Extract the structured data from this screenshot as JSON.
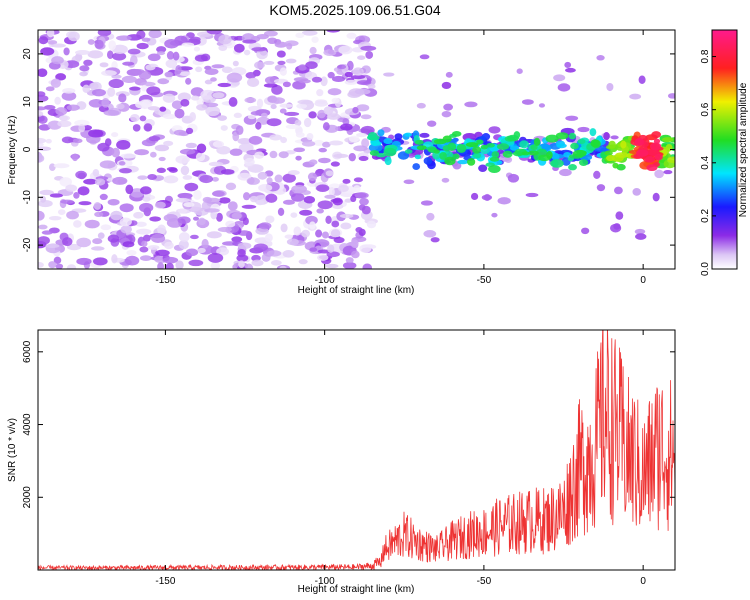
{
  "figure": {
    "title": "KOM5.2025.109.06.51.G04"
  },
  "colors": {
    "snr_line": "#ee3333",
    "axis": "#000000",
    "background": "#ffffff"
  },
  "chart_data": [
    {
      "type": "heatmap",
      "xlabel": "Height of straight line (km)",
      "ylabel": "Frequency (Hz)",
      "xlim": [
        -190,
        10
      ],
      "ylim": [
        -25,
        25
      ],
      "x_ticks": [
        -150,
        -100,
        -50,
        0
      ],
      "y_ticks": [
        -20,
        -10,
        0,
        10,
        20
      ],
      "colorbar": {
        "label": "Normalized spectral amplitude",
        "range": [
          0.0,
          0.9
        ],
        "ticks": [
          0.0,
          0.2,
          0.4,
          0.6,
          0.8
        ],
        "colormap": "white-violet-blue-cyan-green-yellow-red-magenta"
      },
      "grid": false,
      "regions": [
        {
          "x_range": [
            -190,
            -85
          ],
          "y_range": [
            -25,
            25
          ],
          "character": "broadband noise",
          "typical_amplitude": 0.05
        },
        {
          "x_range": [
            -85,
            10
          ],
          "y_range": [
            -3,
            3
          ],
          "character": "signal band near 0 Hz",
          "typical_amplitude": 0.3,
          "peak_amplitude": 0.85,
          "peak_x": 1
        }
      ]
    },
    {
      "type": "line",
      "xlabel": "Height of straight line (km)",
      "ylabel": "SNR (10 * v/v)",
      "xlim": [
        -190,
        10
      ],
      "ylim": [
        0,
        6600
      ],
      "x_ticks": [
        -150,
        -100,
        -50,
        0
      ],
      "y_ticks": [
        2000,
        4000,
        6000
      ],
      "grid": false,
      "series": [
        {
          "x": [
            -190,
            -170,
            -150,
            -130,
            -110,
            -90,
            -85,
            -80,
            -75,
            -70,
            -65,
            -60,
            -55,
            -50,
            -45,
            -40,
            -35,
            -30,
            -25,
            -20,
            -17,
            -15,
            -12,
            -10,
            -7,
            -5,
            -3,
            0,
            3,
            5,
            8,
            10
          ],
          "y": [
            150,
            150,
            160,
            170,
            180,
            200,
            300,
            800,
            1200,
            900,
            700,
            1000,
            1200,
            1300,
            1500,
            1600,
            1700,
            1700,
            2000,
            3500,
            3800,
            4200,
            5500,
            5000,
            4500,
            4000,
            3800,
            3200,
            3800,
            4200,
            4000,
            3900
          ]
        }
      ]
    }
  ]
}
